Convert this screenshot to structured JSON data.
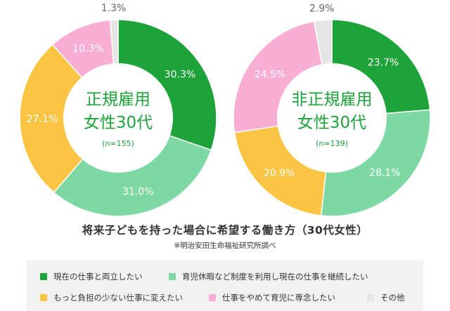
{
  "chart_data": [
    {
      "type": "pie",
      "title_lines": [
        "正規雇用",
        "女性30代"
      ],
      "n_label": "(n=155)",
      "slices": [
        {
          "category": "現在の仕事と両立したい",
          "value": 30.3,
          "label": "30.3%"
        },
        {
          "category": "育児休暇など制度を利用し現在の仕事を継続したい",
          "value": 31.0,
          "label": "31.0%"
        },
        {
          "category": "もっと負担の少ない仕事に変えたい",
          "value": 27.1,
          "label": "27.1%"
        },
        {
          "category": "仕事をやめて育児に専念したい",
          "value": 10.3,
          "label": "10.3%"
        },
        {
          "category": "その他",
          "value": 1.3,
          "label": "1.3%"
        }
      ]
    },
    {
      "type": "pie",
      "title_lines": [
        "非正規雇用",
        "女性30代"
      ],
      "n_label": "(n=139)",
      "slices": [
        {
          "category": "現在の仕事と両立したい",
          "value": 23.7,
          "label": "23.7%"
        },
        {
          "category": "育児休暇など制度を利用し現在の仕事を継続したい",
          "value": 28.1,
          "label": "28.1%"
        },
        {
          "category": "もっと負担の少ない仕事に変えたい",
          "value": 20.9,
          "label": "20.9%"
        },
        {
          "category": "仕事をやめて育児に専念したい",
          "value": 24.5,
          "label": "24.5%"
        },
        {
          "category": "その他",
          "value": 2.9,
          "label": "2.9%"
        }
      ]
    }
  ],
  "title": "将来子どもを持った場合に希望する働き方（30代女性）",
  "source": "※明治安田生命福祉研究所調べ",
  "legend": [
    {
      "label": "現在の仕事と両立したい",
      "color": "#1ea23a"
    },
    {
      "label": "育児休暇など制度を利用し現在の仕事を継続したい",
      "color": "#7dd8a3"
    },
    {
      "label": "もっと負担の少ない仕事に変えたい",
      "color": "#fcc443"
    },
    {
      "label": "仕事をやめて育児に専念したい",
      "color": "#f8add2"
    },
    {
      "label": "その他",
      "color": "#e5e5e5"
    }
  ],
  "colors": {
    "center_text": "#1ea23a",
    "slice_label_light": "#ffffff",
    "slice_label_dark": "#666666"
  }
}
